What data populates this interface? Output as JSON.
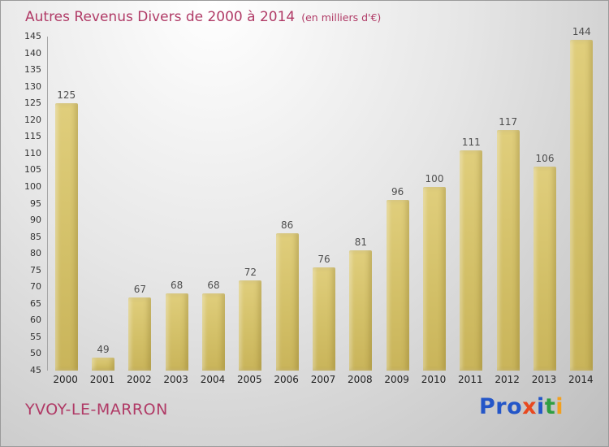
{
  "title": "Autres Revenus Divers de 2000 à 2014",
  "subtitle": "(en milliers d'€)",
  "accent_color": "#b03a66",
  "footer": {
    "commune": "YVOY-LE-MARRON"
  },
  "logo_letters": [
    {
      "ch": "P",
      "color": "#2456c8"
    },
    {
      "ch": "r",
      "color": "#2456c8"
    },
    {
      "ch": "o",
      "color": "#2456c8"
    },
    {
      "ch": "x",
      "color": "#e8481f"
    },
    {
      "ch": "i",
      "color": "#2456c8"
    },
    {
      "ch": "t",
      "color": "#2f9e41"
    },
    {
      "ch": "i",
      "color": "#f2a01e"
    }
  ],
  "chart_data": {
    "type": "bar",
    "title": "Autres Revenus Divers de 2000 à 2014",
    "subtitle": "(en milliers d'€)",
    "categories": [
      "2000",
      "2001",
      "2002",
      "2003",
      "2004",
      "2005",
      "2006",
      "2007",
      "2008",
      "2009",
      "2010",
      "2011",
      "2012",
      "2013",
      "2014"
    ],
    "values": [
      125,
      49,
      67,
      68,
      68,
      72,
      86,
      76,
      81,
      96,
      100,
      111,
      117,
      106,
      144
    ],
    "xlabel": "",
    "ylabel": "",
    "ylim": [
      45,
      145
    ],
    "ytick_step": 5,
    "bar_color": "#d3c06a",
    "value_label_color": "#4d4d4d",
    "grid": false,
    "legend": false
  }
}
